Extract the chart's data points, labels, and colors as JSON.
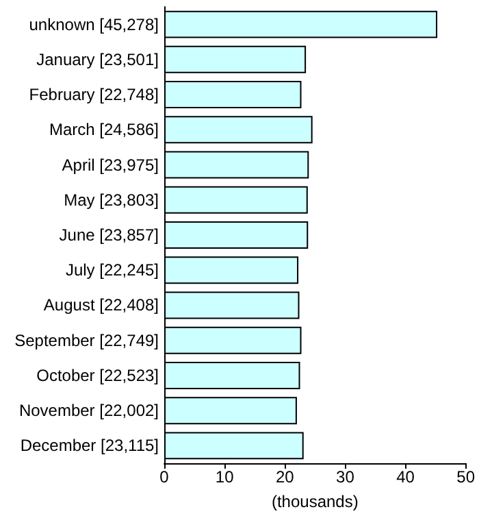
{
  "chart_data": {
    "type": "bar",
    "orientation": "horizontal",
    "xlabel": "(thousands)",
    "categories": [
      "unknown [45,278]",
      "January [23,501]",
      "February [22,748]",
      "March [24,586]",
      "April [23,975]",
      "May [23,803]",
      "June [23,857]",
      "July [22,245]",
      "August [22,408]",
      "September [22,749]",
      "October [22,523]",
      "November [22,002]",
      "December [23,115]"
    ],
    "values": [
      45.278,
      23.501,
      22.748,
      24.586,
      23.975,
      23.803,
      23.857,
      22.245,
      22.408,
      22.749,
      22.523,
      22.002,
      23.115
    ],
    "color": "#ccffff",
    "xlim": [
      0,
      50
    ],
    "xticks": [
      0,
      10,
      20,
      30,
      40,
      50
    ],
    "grid": false
  }
}
